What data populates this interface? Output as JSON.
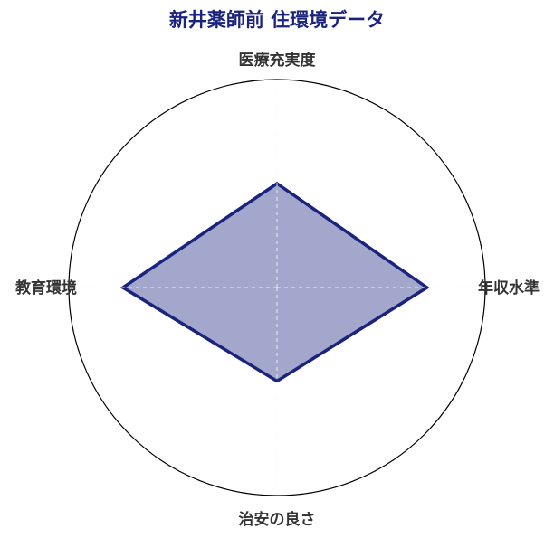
{
  "chart_data": {
    "type": "radar",
    "title": "新井薬師前 住環境データ",
    "categories": [
      "医療充実度",
      "年収水準",
      "治安の良さ",
      "教育環境"
    ],
    "values": [
      50,
      72,
      45,
      74
    ],
    "rlim": [
      0,
      100
    ],
    "grid": true,
    "colors": {
      "title": "#1a237e",
      "line": "#1a237e",
      "fill": "#1a237e"
    }
  }
}
